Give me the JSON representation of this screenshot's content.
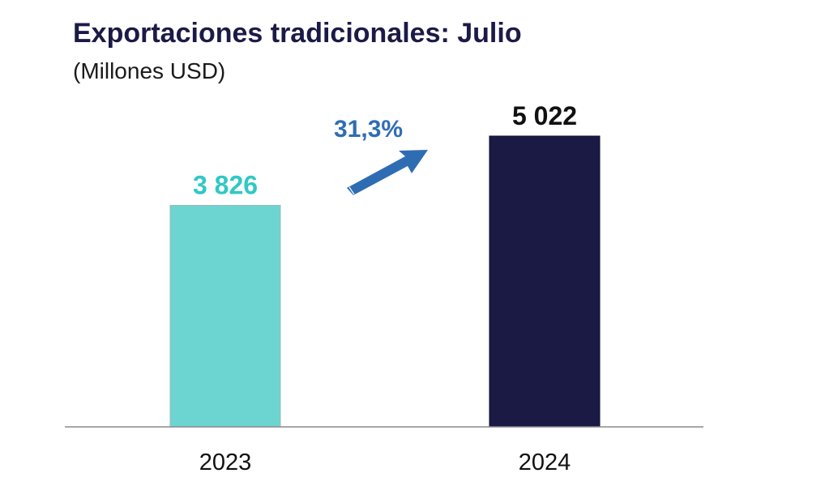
{
  "chart_data": {
    "type": "bar",
    "title": "Exportaciones tradicionales: Julio",
    "subtitle": "(Millones USD)",
    "categories": [
      "2023",
      "2024"
    ],
    "values": [
      3826,
      5022
    ],
    "value_labels": [
      "3 826",
      "5 022"
    ],
    "bar_colors": [
      "#6dd5d1",
      "#1a1a45"
    ],
    "label_colors": [
      "#2fc9c4",
      "#111111"
    ],
    "growth_label": "31,3%",
    "growth_color": "#2f6db3",
    "ylim": [
      0,
      5500
    ],
    "grid": false,
    "legend": "none"
  }
}
